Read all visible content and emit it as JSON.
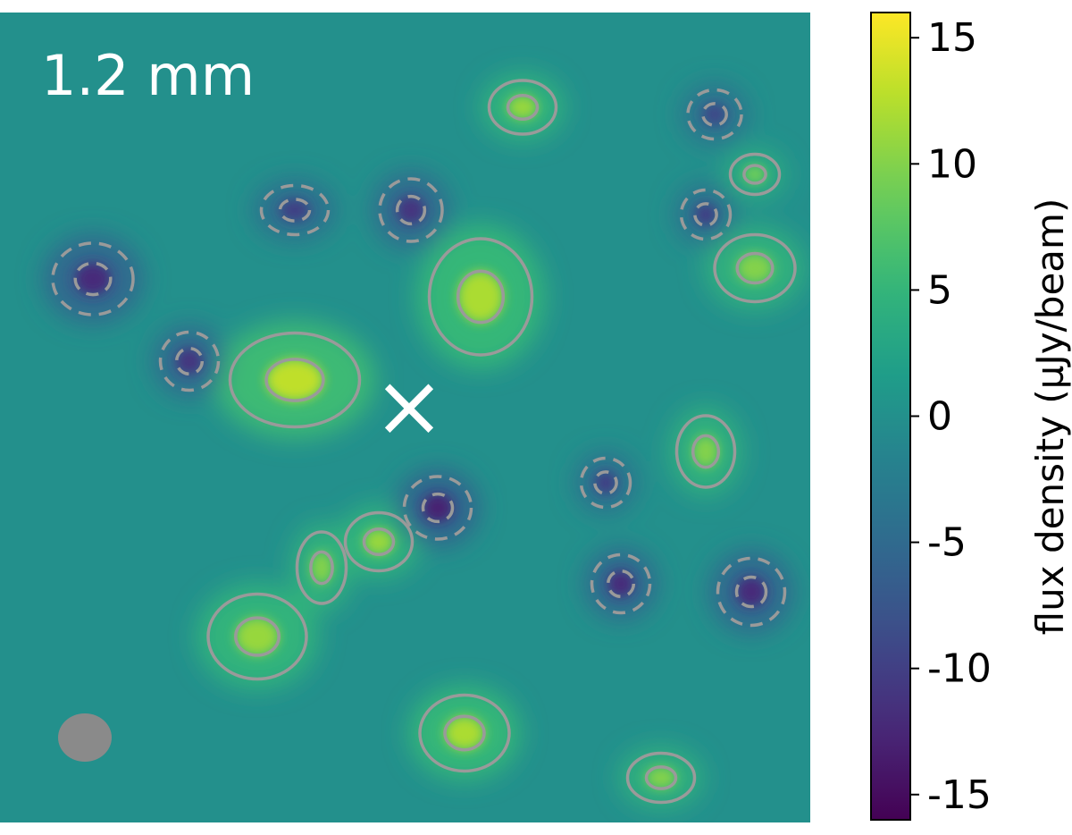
{
  "chart_data": {
    "type": "heatmap",
    "title": "",
    "panel_label": "1.2 mm",
    "xlabel": "",
    "ylabel": "",
    "colormap": "viridis",
    "colorbar": {
      "label": "flux density (µJy/beam)",
      "range": [
        -16,
        16
      ],
      "ticks": [
        15,
        10,
        5,
        0,
        -5,
        -10,
        -15
      ],
      "tick_labels": [
        "15",
        "10",
        "5",
        "0",
        "-5",
        "-10",
        "-15"
      ]
    },
    "contours": {
      "positive": {
        "style": "solid",
        "color": "#9a9a9a"
      },
      "negative": {
        "style": "dashed",
        "color": "#9a9a9a"
      }
    },
    "marker": {
      "symbol": "×",
      "color": "#ffffff"
    },
    "beam": {
      "color": "#8a8a8a"
    },
    "features": [
      {
        "kind": "peak",
        "value": 12
      },
      {
        "kind": "peak",
        "value": 13
      },
      {
        "kind": "peak",
        "value": 12
      },
      {
        "kind": "peak",
        "value": 11
      },
      {
        "kind": "peak",
        "value": 10
      },
      {
        "kind": "peak",
        "value": 11
      },
      {
        "kind": "peak",
        "value": 10
      },
      {
        "kind": "peak",
        "value": 11
      },
      {
        "kind": "peak",
        "value": 10
      },
      {
        "kind": "peak",
        "value": 10
      },
      {
        "kind": "peak",
        "value": 9
      },
      {
        "kind": "trough",
        "value": -13
      },
      {
        "kind": "trough",
        "value": -12
      },
      {
        "kind": "trough",
        "value": -12
      },
      {
        "kind": "trough",
        "value": -12
      },
      {
        "kind": "trough",
        "value": -11
      },
      {
        "kind": "trough",
        "value": -11
      },
      {
        "kind": "trough",
        "value": -10
      },
      {
        "kind": "trough",
        "value": -10
      },
      {
        "kind": "trough",
        "value": -10
      },
      {
        "kind": "trough",
        "value": -9
      }
    ]
  }
}
